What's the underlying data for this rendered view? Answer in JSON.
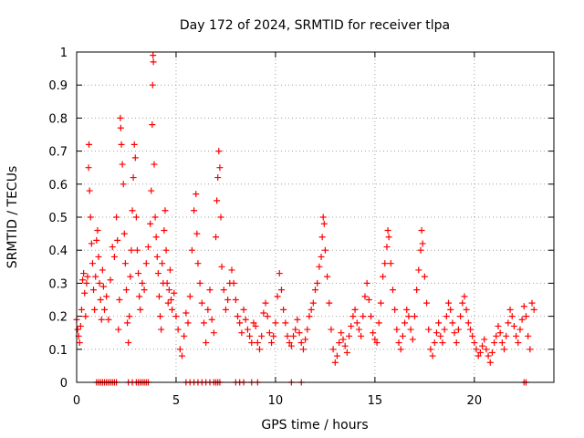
{
  "chart_data": {
    "type": "scatter",
    "title": "Day 172 of 2024, SRMTID for receiver tlpa",
    "xlabel": "GPS time / hours",
    "ylabel": "SRMTID / TECUs",
    "xlim": [
      0,
      24
    ],
    "ylim": [
      0,
      1
    ],
    "xticks": [
      0,
      5,
      10,
      15,
      20
    ],
    "yticks": [
      0,
      0.1,
      0.2,
      0.3,
      0.4,
      0.5,
      0.6,
      0.7,
      0.8,
      0.9,
      1
    ],
    "xtick_labels": [
      "0",
      "5",
      "10",
      "15",
      "20"
    ],
    "ytick_labels": [
      "0",
      "0.1",
      "0.2",
      "0.3",
      "0.4",
      "0.5",
      "0.6",
      "0.7",
      "0.8",
      "0.9",
      "1"
    ],
    "grid": true,
    "marker": "+",
    "color": "#ff0000",
    "series": [
      {
        "name": "SRMTID",
        "points": [
          [
            0.0,
            0.19
          ],
          [
            0.05,
            0.16
          ],
          [
            0.1,
            0.14
          ],
          [
            0.15,
            0.12
          ],
          [
            0.2,
            0.17
          ],
          [
            0.25,
            0.22
          ],
          [
            0.3,
            0.31
          ],
          [
            0.35,
            0.33
          ],
          [
            0.4,
            0.27
          ],
          [
            0.45,
            0.2
          ],
          [
            0.5,
            0.3
          ],
          [
            0.55,
            0.32
          ],
          [
            0.6,
            0.65
          ],
          [
            0.62,
            0.72
          ],
          [
            0.65,
            0.58
          ],
          [
            0.7,
            0.5
          ],
          [
            0.75,
            0.42
          ],
          [
            0.8,
            0.36
          ],
          [
            0.85,
            0.28
          ],
          [
            0.9,
            0.22
          ],
          [
            0.95,
            0.32
          ],
          [
            1.0,
            0.43
          ],
          [
            1.05,
            0.46
          ],
          [
            1.1,
            0.38
          ],
          [
            1.15,
            0.3
          ],
          [
            1.2,
            0.25
          ],
          [
            1.25,
            0.19
          ],
          [
            1.3,
            0.34
          ],
          [
            1.35,
            0.29
          ],
          [
            1.4,
            0.22
          ],
          [
            1.5,
            0.26
          ],
          [
            1.6,
            0.19
          ],
          [
            1.7,
            0.31
          ],
          [
            1.8,
            0.41
          ],
          [
            1.9,
            0.38
          ],
          [
            2.0,
            0.5
          ],
          [
            2.05,
            0.43
          ],
          [
            2.1,
            0.16
          ],
          [
            2.15,
            0.25
          ],
          [
            2.2,
            0.8
          ],
          [
            2.22,
            0.77
          ],
          [
            2.25,
            0.72
          ],
          [
            2.3,
            0.66
          ],
          [
            2.35,
            0.6
          ],
          [
            2.4,
            0.45
          ],
          [
            2.45,
            0.36
          ],
          [
            2.5,
            0.28
          ],
          [
            2.55,
            0.18
          ],
          [
            2.6,
            0.12
          ],
          [
            2.65,
            0.2
          ],
          [
            2.7,
            0.32
          ],
          [
            2.75,
            0.4
          ],
          [
            2.8,
            0.52
          ],
          [
            2.85,
            0.62
          ],
          [
            2.9,
            0.72
          ],
          [
            2.95,
            0.68
          ],
          [
            3.0,
            0.5
          ],
          [
            3.05,
            0.4
          ],
          [
            3.1,
            0.33
          ],
          [
            3.15,
            0.26
          ],
          [
            3.2,
            0.22
          ],
          [
            3.3,
            0.3
          ],
          [
            3.4,
            0.28
          ],
          [
            3.5,
            0.36
          ],
          [
            3.6,
            0.41
          ],
          [
            3.7,
            0.48
          ],
          [
            3.75,
            0.58
          ],
          [
            3.8,
            0.78
          ],
          [
            3.82,
            0.9
          ],
          [
            3.84,
            0.99
          ],
          [
            3.86,
            0.97
          ],
          [
            3.9,
            0.66
          ],
          [
            3.95,
            0.5
          ],
          [
            4.0,
            0.44
          ],
          [
            4.05,
            0.38
          ],
          [
            4.1,
            0.33
          ],
          [
            4.15,
            0.26
          ],
          [
            4.2,
            0.2
          ],
          [
            4.25,
            0.16
          ],
          [
            4.3,
            0.36
          ],
          [
            4.35,
            0.3
          ],
          [
            4.4,
            0.46
          ],
          [
            4.45,
            0.52
          ],
          [
            4.5,
            0.4
          ],
          [
            4.55,
            0.3
          ],
          [
            4.6,
            0.24
          ],
          [
            4.65,
            0.28
          ],
          [
            4.7,
            0.34
          ],
          [
            4.75,
            0.25
          ],
          [
            4.8,
            0.22
          ],
          [
            4.9,
            0.27
          ],
          [
            5.0,
            0.2
          ],
          [
            5.1,
            0.16
          ],
          [
            5.2,
            0.1
          ],
          [
            5.3,
            0.08
          ],
          [
            5.4,
            0.14
          ],
          [
            5.5,
            0.21
          ],
          [
            5.6,
            0.18
          ],
          [
            5.7,
            0.26
          ],
          [
            5.8,
            0.4
          ],
          [
            5.9,
            0.52
          ],
          [
            6.0,
            0.57
          ],
          [
            6.05,
            0.45
          ],
          [
            6.1,
            0.36
          ],
          [
            6.2,
            0.3
          ],
          [
            6.3,
            0.24
          ],
          [
            6.4,
            0.18
          ],
          [
            6.5,
            0.12
          ],
          [
            6.6,
            0.22
          ],
          [
            6.7,
            0.28
          ],
          [
            6.8,
            0.19
          ],
          [
            6.9,
            0.15
          ],
          [
            7.0,
            0.44
          ],
          [
            7.05,
            0.55
          ],
          [
            7.1,
            0.62
          ],
          [
            7.15,
            0.7
          ],
          [
            7.2,
            0.65
          ],
          [
            7.25,
            0.5
          ],
          [
            7.3,
            0.35
          ],
          [
            7.4,
            0.28
          ],
          [
            7.5,
            0.22
          ],
          [
            7.6,
            0.25
          ],
          [
            7.7,
            0.3
          ],
          [
            7.8,
            0.34
          ],
          [
            7.9,
            0.3
          ],
          [
            8.0,
            0.25
          ],
          [
            8.1,
            0.2
          ],
          [
            8.2,
            0.18
          ],
          [
            8.3,
            0.15
          ],
          [
            8.4,
            0.22
          ],
          [
            8.5,
            0.19
          ],
          [
            8.6,
            0.16
          ],
          [
            8.7,
            0.14
          ],
          [
            8.8,
            0.12
          ],
          [
            8.9,
            0.18
          ],
          [
            9.0,
            0.17
          ],
          [
            9.1,
            0.12
          ],
          [
            9.2,
            0.1
          ],
          [
            9.3,
            0.14
          ],
          [
            9.4,
            0.21
          ],
          [
            9.5,
            0.24
          ],
          [
            9.6,
            0.2
          ],
          [
            9.7,
            0.15
          ],
          [
            9.8,
            0.12
          ],
          [
            9.9,
            0.14
          ],
          [
            10.0,
            0.18
          ],
          [
            10.1,
            0.26
          ],
          [
            10.2,
            0.33
          ],
          [
            10.3,
            0.28
          ],
          [
            10.4,
            0.22
          ],
          [
            10.5,
            0.18
          ],
          [
            10.6,
            0.14
          ],
          [
            10.7,
            0.12
          ],
          [
            10.8,
            0.11
          ],
          [
            10.9,
            0.14
          ],
          [
            11.0,
            0.16
          ],
          [
            11.1,
            0.19
          ],
          [
            11.2,
            0.15
          ],
          [
            11.3,
            0.12
          ],
          [
            11.4,
            0.1
          ],
          [
            11.5,
            0.13
          ],
          [
            11.6,
            0.16
          ],
          [
            11.7,
            0.2
          ],
          [
            11.8,
            0.22
          ],
          [
            11.9,
            0.24
          ],
          [
            12.0,
            0.28
          ],
          [
            12.1,
            0.3
          ],
          [
            12.2,
            0.35
          ],
          [
            12.3,
            0.38
          ],
          [
            12.35,
            0.44
          ],
          [
            12.4,
            0.5
          ],
          [
            12.45,
            0.48
          ],
          [
            12.5,
            0.4
          ],
          [
            12.6,
            0.32
          ],
          [
            12.7,
            0.24
          ],
          [
            12.8,
            0.16
          ],
          [
            12.9,
            0.1
          ],
          [
            13.0,
            0.06
          ],
          [
            13.1,
            0.08
          ],
          [
            13.2,
            0.12
          ],
          [
            13.3,
            0.15
          ],
          [
            13.4,
            0.13
          ],
          [
            13.5,
            0.11
          ],
          [
            13.6,
            0.09
          ],
          [
            13.7,
            0.14
          ],
          [
            13.8,
            0.17
          ],
          [
            13.9,
            0.2
          ],
          [
            14.0,
            0.22
          ],
          [
            14.1,
            0.18
          ],
          [
            14.2,
            0.16
          ],
          [
            14.3,
            0.14
          ],
          [
            14.4,
            0.2
          ],
          [
            14.5,
            0.26
          ],
          [
            14.6,
            0.3
          ],
          [
            14.7,
            0.25
          ],
          [
            14.8,
            0.2
          ],
          [
            14.9,
            0.15
          ],
          [
            15.0,
            0.13
          ],
          [
            15.1,
            0.12
          ],
          [
            15.2,
            0.18
          ],
          [
            15.3,
            0.24
          ],
          [
            15.4,
            0.32
          ],
          [
            15.5,
            0.36
          ],
          [
            15.6,
            0.41
          ],
          [
            15.65,
            0.46
          ],
          [
            15.7,
            0.44
          ],
          [
            15.8,
            0.36
          ],
          [
            15.9,
            0.28
          ],
          [
            16.0,
            0.22
          ],
          [
            16.1,
            0.16
          ],
          [
            16.2,
            0.12
          ],
          [
            16.3,
            0.1
          ],
          [
            16.4,
            0.14
          ],
          [
            16.5,
            0.18
          ],
          [
            16.6,
            0.22
          ],
          [
            16.7,
            0.2
          ],
          [
            16.8,
            0.16
          ],
          [
            16.9,
            0.13
          ],
          [
            17.0,
            0.2
          ],
          [
            17.1,
            0.28
          ],
          [
            17.2,
            0.34
          ],
          [
            17.3,
            0.4
          ],
          [
            17.35,
            0.46
          ],
          [
            17.4,
            0.42
          ],
          [
            17.5,
            0.32
          ],
          [
            17.6,
            0.24
          ],
          [
            17.7,
            0.16
          ],
          [
            17.8,
            0.1
          ],
          [
            17.9,
            0.08
          ],
          [
            18.0,
            0.12
          ],
          [
            18.1,
            0.15
          ],
          [
            18.2,
            0.18
          ],
          [
            18.3,
            0.14
          ],
          [
            18.4,
            0.12
          ],
          [
            18.5,
            0.16
          ],
          [
            18.6,
            0.2
          ],
          [
            18.7,
            0.24
          ],
          [
            18.8,
            0.22
          ],
          [
            18.9,
            0.18
          ],
          [
            19.0,
            0.15
          ],
          [
            19.1,
            0.12
          ],
          [
            19.2,
            0.16
          ],
          [
            19.3,
            0.2
          ],
          [
            19.4,
            0.24
          ],
          [
            19.5,
            0.26
          ],
          [
            19.6,
            0.22
          ],
          [
            19.7,
            0.18
          ],
          [
            19.8,
            0.16
          ],
          [
            19.9,
            0.14
          ],
          [
            20.0,
            0.12
          ],
          [
            20.1,
            0.1
          ],
          [
            20.2,
            0.08
          ],
          [
            20.3,
            0.09
          ],
          [
            20.4,
            0.11
          ],
          [
            20.5,
            0.13
          ],
          [
            20.6,
            0.1
          ],
          [
            20.7,
            0.08
          ],
          [
            20.8,
            0.06
          ],
          [
            20.9,
            0.09
          ],
          [
            21.0,
            0.12
          ],
          [
            21.1,
            0.14
          ],
          [
            21.2,
            0.17
          ],
          [
            21.3,
            0.15
          ],
          [
            21.4,
            0.12
          ],
          [
            21.5,
            0.1
          ],
          [
            21.6,
            0.14
          ],
          [
            21.7,
            0.18
          ],
          [
            21.8,
            0.22
          ],
          [
            21.9,
            0.2
          ],
          [
            22.0,
            0.17
          ],
          [
            22.1,
            0.14
          ],
          [
            22.2,
            0.12
          ],
          [
            22.3,
            0.16
          ],
          [
            22.4,
            0.19
          ],
          [
            22.5,
            0.23
          ],
          [
            22.6,
            0.2
          ],
          [
            22.7,
            0.14
          ],
          [
            22.8,
            0.1
          ],
          [
            22.9,
            0.24
          ],
          [
            23.0,
            0.22
          ]
        ],
        "zeros": [
          1.0,
          1.1,
          1.2,
          1.3,
          1.4,
          1.5,
          1.6,
          1.7,
          1.8,
          1.9,
          2.0,
          2.6,
          2.8,
          3.0,
          3.1,
          3.2,
          3.3,
          3.4,
          3.5,
          3.6,
          5.5,
          5.7,
          5.9,
          6.1,
          6.3,
          6.5,
          6.7,
          6.9,
          7.0,
          7.1,
          7.2,
          8.0,
          8.2,
          8.4,
          8.8,
          9.1,
          10.8,
          11.3,
          22.5,
          22.6
        ]
      }
    ]
  }
}
